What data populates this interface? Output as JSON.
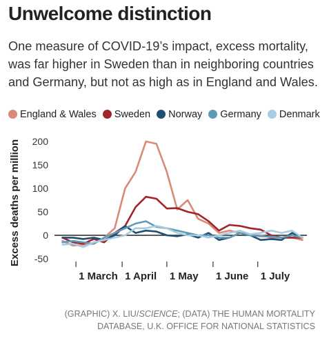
{
  "title": "Unwelcome distinction",
  "subtitle": "One measure of COVID-19’s impact, excess mortality, was far higher in Sweden than in neighboring countries and Germany, but not as high as in England and Wales.",
  "credit": {
    "part1": "(GRAPHIC) X. LIU/",
    "part2": "SCIENCE",
    "part3": "; (DATA) THE HUMAN MORTALITY DATABASE, U.K. OFFICE FOR NATIONAL STATISTICS"
  },
  "chart_data": {
    "type": "line",
    "title": "Unwelcome distinction",
    "ylabel": "Excess deaths per million",
    "xlabel": "",
    "ylim": [
      -50,
      200
    ],
    "yticks": [
      -50,
      0,
      50,
      100,
      150,
      200
    ],
    "xlim": [
      "2020-02-17",
      "2020-08-03"
    ],
    "xticks": [
      {
        "date": "2020-03-01",
        "label": "1 March"
      },
      {
        "date": "2020-04-01",
        "label": "1 April"
      },
      {
        "date": "2020-05-01",
        "label": "1 May"
      },
      {
        "date": "2020-06-01",
        "label": "1 June"
      },
      {
        "date": "2020-07-01",
        "label": "1 July"
      }
    ],
    "legend_position": "top",
    "grid": false,
    "x": [
      "2020-02-21",
      "2020-02-28",
      "2020-03-06",
      "2020-03-13",
      "2020-03-20",
      "2020-03-27",
      "2020-04-03",
      "2020-04-10",
      "2020-04-17",
      "2020-04-24",
      "2020-05-01",
      "2020-05-08",
      "2020-05-15",
      "2020-05-22",
      "2020-05-29",
      "2020-06-05",
      "2020-06-12",
      "2020-06-19",
      "2020-06-26",
      "2020-07-03",
      "2020-07-10",
      "2020-07-17",
      "2020-07-24",
      "2020-07-31"
    ],
    "series": [
      {
        "name": "England & Wales",
        "color": "#d98a78",
        "values": [
          -12,
          -22,
          -20,
          -18,
          -5,
          15,
          100,
          135,
          200,
          195,
          135,
          55,
          75,
          35,
          25,
          5,
          10,
          5,
          0,
          0,
          -5,
          -5,
          -5,
          -10
        ]
      },
      {
        "name": "Sweden",
        "color": "#a1242a",
        "values": [
          -5,
          -15,
          -18,
          -8,
          -15,
          5,
          20,
          60,
          82,
          78,
          57,
          58,
          50,
          45,
          30,
          10,
          22,
          20,
          15,
          12,
          0,
          -5,
          -5,
          -5
        ]
      },
      {
        "name": "Norway",
        "color": "#1e4e70",
        "values": [
          -5,
          -5,
          -8,
          -5,
          -10,
          0,
          20,
          5,
          10,
          8,
          0,
          -2,
          2,
          -5,
          5,
          -10,
          -5,
          5,
          0,
          -10,
          -8,
          -10,
          5,
          -5
        ]
      },
      {
        "name": "Germany",
        "color": "#5e9bb8",
        "values": [
          -15,
          -12,
          -15,
          -18,
          -5,
          5,
          15,
          25,
          30,
          18,
          15,
          10,
          5,
          0,
          0,
          -5,
          -5,
          5,
          0,
          -2,
          -3,
          -5,
          0,
          -5
        ]
      },
      {
        "name": "Denmark",
        "color": "#a8cce0",
        "values": [
          -20,
          -18,
          -25,
          -15,
          -10,
          -5,
          0,
          15,
          15,
          20,
          15,
          5,
          0,
          0,
          -5,
          0,
          5,
          10,
          2,
          5,
          10,
          5,
          10,
          -5
        ]
      }
    ]
  }
}
